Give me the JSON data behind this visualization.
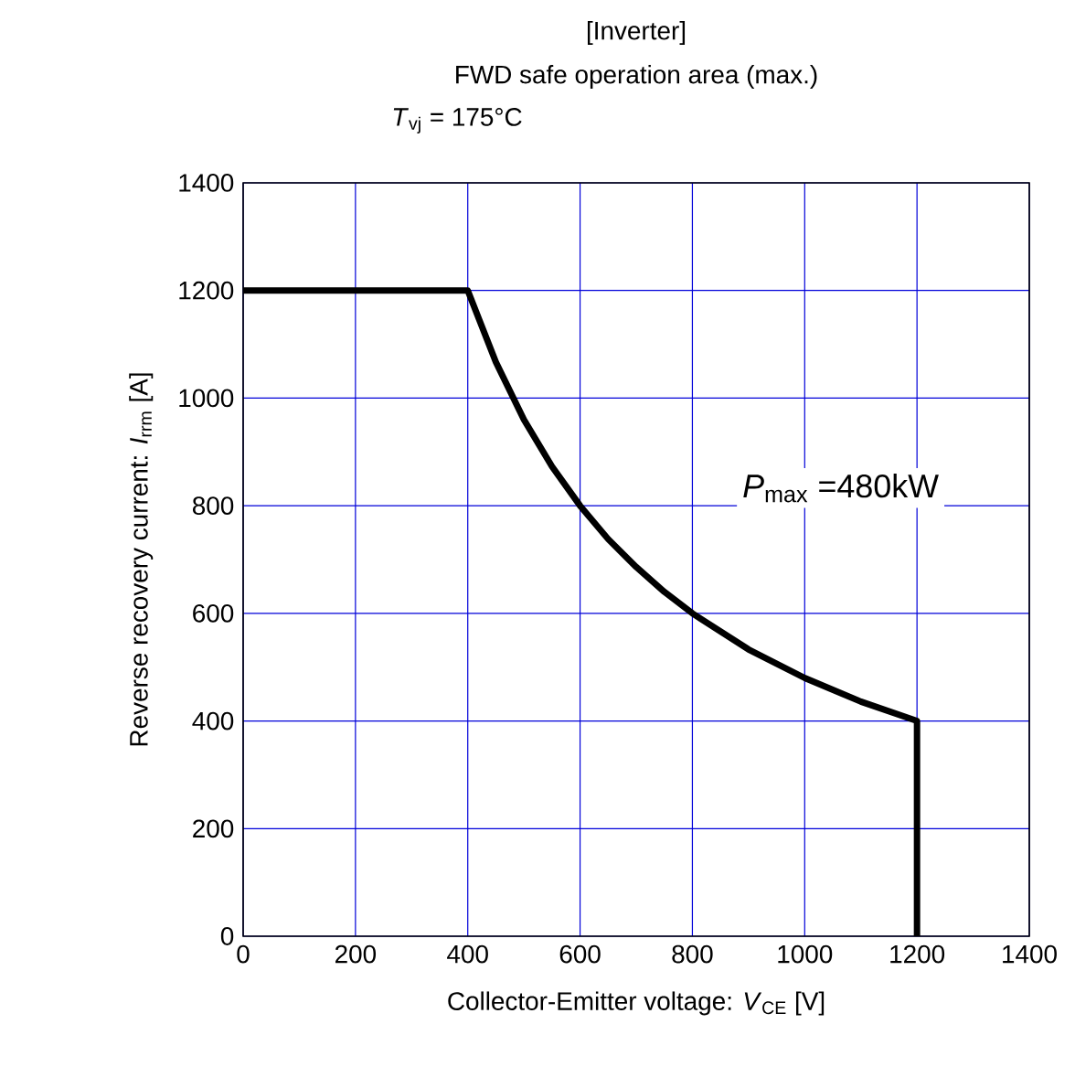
{
  "chart_data": {
    "type": "line",
    "title": "[Inverter]",
    "subtitle": "FWD safe operation area (max.)",
    "xlabel": "Collector-Emitter voltage: *V*$_{CE}$ [V]",
    "ylabel": "Reverse recovery current: *I*$_{rrm}$ [A]",
    "annotations": [
      "*T*$_{vj}$ = 175°C",
      "*P*$_{max}$ =480kW"
    ],
    "series": [
      {
        "color": "#000000",
        "x": [
          0,
          400,
          450,
          500,
          550,
          600,
          650,
          700,
          750,
          800,
          900,
          1000,
          1100,
          1200,
          1200
        ],
        "values": [
          1200,
          1200,
          1067,
          960,
          873,
          800,
          738,
          686,
          640,
          600,
          533,
          480,
          436,
          400,
          0
        ]
      }
    ],
    "xlim": [
      0,
      1400
    ],
    "ylim": [
      0,
      1400
    ],
    "xticks": [
      0,
      200,
      400,
      600,
      800,
      1000,
      1200,
      1400
    ],
    "yticks": [
      0,
      200,
      400,
      600,
      800,
      1000,
      1200,
      1400
    ],
    "grid": true,
    "line_style": "solid"
  }
}
